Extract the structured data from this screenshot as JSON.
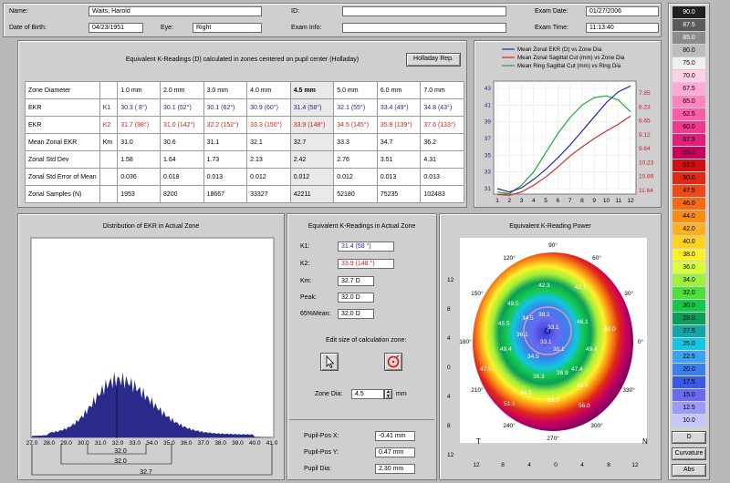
{
  "patient": {
    "name_label": "Name:",
    "name_value": "Waits, Harold",
    "dob_label": "Date of Birth:",
    "dob_value": "04/23/1951",
    "eye_label": "Eye:",
    "eye_value": "Right",
    "id_label": "ID:",
    "id_value": "",
    "exam_info_label": "Exam Info:",
    "exam_info_value": "",
    "exam_date_label": "Exam Date:",
    "exam_date_value": "01/27/2006",
    "exam_time_label": "Exam Time:",
    "exam_time_value": "11:13:40"
  },
  "kreadings": {
    "title": "Equivalent K-Readings (D) calculated in zones centered on pupil center (Holladay)",
    "button": "Holladay Rep.",
    "header": [
      "Zone Diameter",
      "",
      "1.0 mm",
      "2.0 mm",
      "3.0 mm",
      "4.0 mm",
      "4.5 mm",
      "5.0 mm",
      "6.0 mm",
      "7.0 mm"
    ],
    "rows": [
      [
        "EKR",
        "K1",
        "30.3 ( 8°)",
        "30.1 (52°)",
        "30.1 (62°)",
        "30.9 (60°)",
        "31.4 (58°)",
        "32.1 (55°)",
        "33.4 (49°)",
        "34.8 (43°)"
      ],
      [
        "EKR",
        "K2",
        "31.7 (98°)",
        "31.0 (142°)",
        "32.2 (152°)",
        "33.3 (150°)",
        "33.9 (148°)",
        "34.5 (145°)",
        "35.9 (139°)",
        "37.6 (133°)"
      ],
      [
        "Mean Zonal EKR",
        "Km",
        "31.0",
        "30.6",
        "31.1",
        "32.1",
        "32.7",
        "33.3",
        "34.7",
        "36.2"
      ],
      [
        "Zonal Std Dev",
        "",
        "1.58",
        "1.64",
        "1.73",
        "2.13",
        "2.42",
        "2.76",
        "3.51",
        "4.31"
      ],
      [
        "Zonal Std Error of Mean",
        "",
        "0.036",
        "0.018",
        "0.013",
        "0.012",
        "0.012",
        "0.012",
        "0.013",
        "0.013"
      ],
      [
        "Zonal Samples (N)",
        "",
        "1953",
        "8200",
        "18667",
        "33327",
        "42211",
        "52180",
        "75235",
        "102483"
      ]
    ]
  },
  "line_chart": {
    "legend": [
      "Mean Zonal EKR (D) vs Zone Dia",
      "Mean Zonal Sagittal Cut (mm) vs Zone Dia",
      "Mean Ring Sagittal Cut (mm) vs Ring Dia"
    ],
    "legend_colors": [
      "#2a2aa0",
      "#d22a2a",
      "#22a83a"
    ],
    "left_ticks": [
      "43",
      "41",
      "39",
      "37",
      "35",
      "33",
      "31"
    ],
    "right_ticks": [
      "7.85",
      "8.23",
      "8.65",
      "9.12",
      "9.64",
      "10.23",
      "10.89",
      "11.64"
    ],
    "x_ticks": [
      "1",
      "2",
      "3",
      "4",
      "5",
      "6",
      "7",
      "8",
      "9",
      "10",
      "11",
      "12"
    ]
  },
  "histogram": {
    "title": "Distribution of EKR in Actual Zone",
    "x_ticks": [
      "27.0",
      "28.0",
      "29.0",
      "30.0",
      "31.0",
      "32.0",
      "33.0",
      "34.0",
      "35.0",
      "36.0",
      "37.0",
      "38.0",
      "39.0",
      "40.0",
      "41.0"
    ],
    "mark1": "32.0",
    "mark2": "32.0",
    "mark3": "32.7"
  },
  "actual_zone": {
    "title": "Equivalent K-Readings in Actual Zone",
    "k1_label": "K1:",
    "k1_value": "31.4 (58 °)",
    "k2_label": "K2:",
    "k2_value": "33.9 (148 °)",
    "km_label": "Km:",
    "km_value": "32.7 D",
    "peak_label": "Peak:",
    "peak_value": "32.0 D",
    "mean65_label": "65%Mean:",
    "mean65_value": "32.0 D",
    "edit_label": "Edit size of calculation zone:",
    "zone_dia_label": "Zone Dia:",
    "zone_dia_value": "4.5",
    "zone_dia_unit": "mm",
    "pupil_x_label": "Pupil-Pos X:",
    "pupil_x_value": "-0.41 mm",
    "pupil_y_label": "Pupil-Pos Y:",
    "pupil_y_value": "0.47 mm",
    "pupil_dia_label": "Pupil Dia:",
    "pupil_dia_value": "2.30 mm"
  },
  "topo": {
    "title": "Equivalent K-Reading Power",
    "y_ticks": [
      "12",
      "8",
      "4",
      "0",
      "4",
      "8",
      "12"
    ],
    "x_ticks": [
      "12",
      "8",
      "4",
      "0",
      "4",
      "8",
      "12"
    ],
    "T": "T",
    "N": "N",
    "angles": [
      "90°",
      "60°",
      "30°",
      "0°",
      "330°",
      "300°",
      "270°",
      "240°",
      "210°",
      "180°",
      "150°",
      "120°"
    ],
    "map_values": [
      "42.3",
      "42.1",
      "49.5",
      "45.5",
      "34.5",
      "38.1",
      "46.1",
      "33.1",
      "33.1",
      "30.1",
      "34.5",
      "49.4",
      "47.4",
      "36.3",
      "36.9",
      "44.5",
      "41.4",
      "47.5",
      "51.1",
      "53.3",
      "56.0",
      "49.4",
      "40.0",
      "36.1"
    ]
  },
  "scale": {
    "values": [
      "90.0",
      "87.5",
      "85.0",
      "80.0",
      "75.0",
      "70.0",
      "67.5",
      "65.0",
      "62.5",
      "60.0",
      "57.5",
      "55.0",
      "52.5",
      "50.0",
      "47.5",
      "46.0",
      "44.0",
      "42.0",
      "40.0",
      "38.0",
      "36.0",
      "34.0",
      "32.0",
      "30.0",
      "28.0",
      "27.5",
      "25.0",
      "22.5",
      "20.0",
      "17.5",
      "15.0",
      "12.5",
      "10.0"
    ],
    "colors": [
      "#202020",
      "#5a5a5a",
      "#8c8c8c",
      "#bdbdbd",
      "#f0f0f0",
      "#ffd0e6",
      "#ffa9d4",
      "#ff85c0",
      "#ff5ca8",
      "#f03a90",
      "#e0207a",
      "#c80060",
      "#d01010",
      "#e02818",
      "#ee4a18",
      "#f66a16",
      "#fa8c14",
      "#ffb020",
      "#ffd21e",
      "#fff02a",
      "#d8ff3a",
      "#9ef03a",
      "#4ce03a",
      "#14c84a",
      "#0a9e5a",
      "#14a6a6",
      "#14c6e0",
      "#3aa4f0",
      "#3a7ef0",
      "#3a5ae6",
      "#6a6af0",
      "#9a9af8",
      "#c6c6fc"
    ],
    "footer": [
      "D",
      "Curvature",
      "Abs"
    ]
  }
}
